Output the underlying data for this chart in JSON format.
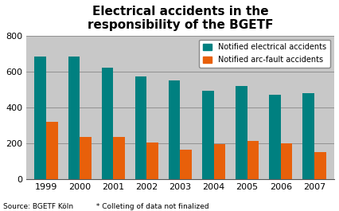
{
  "title": "Electrical accidents in the\nresponsibility of the BGETF",
  "years": [
    "1999",
    "2000",
    "2001",
    "2002",
    "2003",
    "2004",
    "2005",
    "2006",
    "2007"
  ],
  "electrical": [
    685,
    685,
    620,
    570,
    548,
    490,
    520,
    468,
    480
  ],
  "arc_fault": [
    320,
    235,
    235,
    205,
    163,
    193,
    210,
    198,
    148
  ],
  "color_electrical": "#008080",
  "color_arc": "#e8600a",
  "ylim": [
    0,
    800
  ],
  "yticks": [
    0,
    200,
    400,
    600,
    800
  ],
  "legend_electrical": "Notified electrical accidents",
  "legend_arc": "Notified arc-fault accidents",
  "footnote": "Source: BGETF Köln          * Colleting of data not finalized",
  "fig_bg_color": "#ffffff",
  "plot_bg_color": "#c8c8c8",
  "title_fontsize": 11,
  "tick_fontsize": 8,
  "legend_fontsize": 7,
  "footnote_fontsize": 6.5,
  "bar_width": 0.35,
  "grid_color": "#888888",
  "spine_color": "#555555"
}
